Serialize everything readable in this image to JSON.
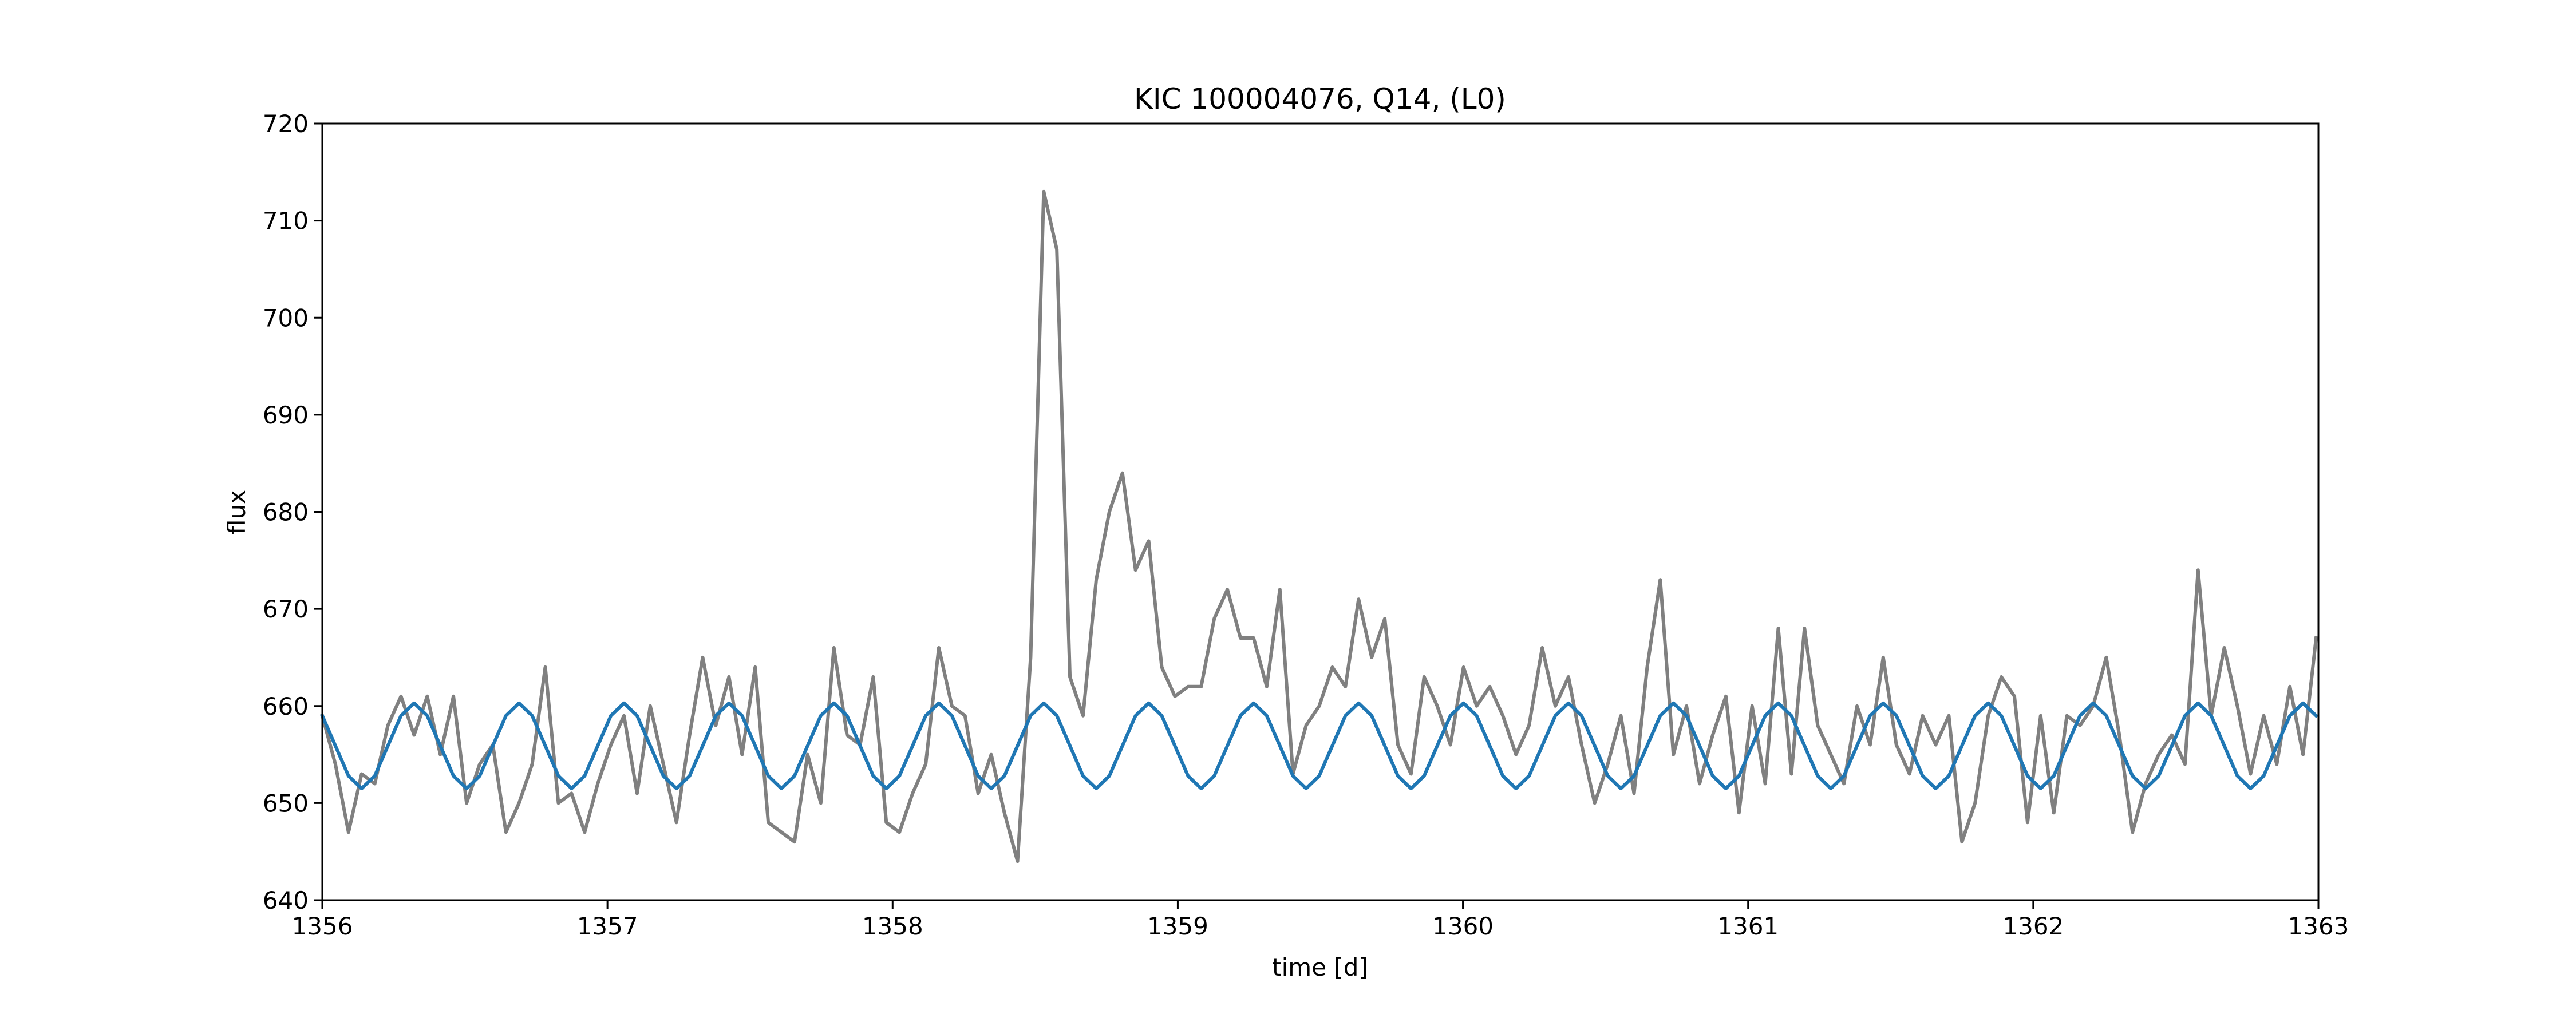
{
  "chart_data": {
    "type": "line",
    "title": "KIC 100004076, Q14, (L0)",
    "x_label": "time [d]",
    "y_label": "flux",
    "x": [
      1356.0,
      1356.046,
      1356.092,
      1356.138,
      1356.184,
      1356.23,
      1356.276,
      1356.322,
      1356.368,
      1356.414,
      1356.46,
      1356.506,
      1356.552,
      1356.598,
      1356.644,
      1356.69,
      1356.736,
      1356.782,
      1356.828,
      1356.874,
      1356.92,
      1356.966,
      1357.012,
      1357.058,
      1357.104,
      1357.15,
      1357.196,
      1357.242,
      1357.288,
      1357.334,
      1357.38,
      1357.426,
      1357.472,
      1357.518,
      1357.564,
      1357.61,
      1357.656,
      1357.702,
      1357.748,
      1357.794,
      1357.84,
      1357.886,
      1357.932,
      1357.978,
      1358.024,
      1358.07,
      1358.116,
      1358.162,
      1358.208,
      1358.254,
      1358.3,
      1358.346,
      1358.392,
      1358.438,
      1358.484,
      1358.53,
      1358.576,
      1358.622,
      1358.668,
      1358.714,
      1358.76,
      1358.806,
      1358.852,
      1358.898,
      1358.944,
      1358.99,
      1359.036,
      1359.082,
      1359.128,
      1359.174,
      1359.22,
      1359.266,
      1359.312,
      1359.358,
      1359.404,
      1359.45,
      1359.496,
      1359.542,
      1359.588,
      1359.634,
      1359.68,
      1359.726,
      1359.772,
      1359.818,
      1359.864,
      1359.91,
      1359.956,
      1360.002,
      1360.048,
      1360.094,
      1360.14,
      1360.186,
      1360.232,
      1360.278,
      1360.324,
      1360.37,
      1360.416,
      1360.462,
      1360.508,
      1360.554,
      1360.6,
      1360.646,
      1360.692,
      1360.738,
      1360.784,
      1360.83,
      1360.876,
      1360.922,
      1360.968,
      1361.014,
      1361.06,
      1361.106,
      1361.152,
      1361.198,
      1361.244,
      1361.29,
      1361.336,
      1361.382,
      1361.428,
      1361.474,
      1361.52,
      1361.566,
      1361.612,
      1361.658,
      1361.704,
      1361.75,
      1361.796,
      1361.842,
      1361.888,
      1361.934,
      1361.98,
      1362.026,
      1362.072,
      1362.118,
      1362.164,
      1362.21,
      1362.256,
      1362.302,
      1362.348,
      1362.394,
      1362.44,
      1362.486,
      1362.532,
      1362.578,
      1362.624,
      1362.67,
      1362.716,
      1362.762,
      1362.808,
      1362.854,
      1362.9,
      1362.946,
      1362.992
    ],
    "series": [
      {
        "color": "#808080",
        "values": [
          659,
          654,
          647,
          653,
          652,
          658,
          661,
          657,
          661,
          655,
          661,
          650,
          654,
          656,
          647,
          650,
          654,
          664,
          650,
          651,
          647,
          652,
          656,
          659,
          651,
          660,
          654,
          648,
          657,
          665,
          658,
          663,
          655,
          664,
          648,
          647,
          646,
          655,
          650,
          666,
          657,
          656,
          663,
          648,
          647,
          651,
          654,
          666,
          660,
          659,
          651,
          655,
          649,
          644,
          665,
          713,
          707,
          663,
          659,
          673,
          680,
          684,
          674,
          677,
          664,
          661,
          662,
          662,
          669,
          672,
          667,
          667,
          662,
          672,
          653,
          658,
          660,
          664,
          662,
          671,
          665,
          669,
          656,
          653,
          663,
          660,
          656,
          664,
          660,
          662,
          659,
          655,
          658,
          666,
          660,
          663,
          656,
          650,
          654,
          659,
          651,
          664,
          673,
          655,
          660,
          652,
          657,
          661,
          649,
          660,
          652,
          668,
          653,
          668,
          658,
          655,
          652,
          660,
          656,
          665,
          656,
          653,
          659,
          656,
          659,
          646,
          650,
          659,
          663,
          661,
          648,
          659,
          649,
          659,
          658,
          660,
          665,
          657,
          647,
          652,
          655,
          657,
          654,
          674,
          659,
          666,
          660,
          653,
          659,
          654,
          662,
          655,
          667
        ]
      },
      {
        "color": "#1f77b4",
        "values": [
          659.0,
          655.9,
          652.8,
          651.5,
          652.8,
          655.9,
          659.0,
          660.3,
          659.0,
          655.9,
          652.8,
          651.5,
          652.8,
          655.9,
          659.0,
          660.3,
          659.0,
          655.9,
          652.8,
          651.5,
          652.8,
          655.9,
          659.0,
          660.3,
          659.0,
          655.9,
          652.8,
          651.5,
          652.8,
          655.9,
          659.0,
          660.3,
          659.0,
          655.9,
          652.8,
          651.5,
          652.8,
          655.9,
          659.0,
          660.3,
          659.0,
          655.9,
          652.8,
          651.5,
          652.8,
          655.9,
          659.0,
          660.3,
          659.0,
          655.9,
          652.8,
          651.5,
          652.8,
          655.9,
          659.0,
          660.3,
          659.0,
          655.9,
          652.8,
          651.5,
          652.8,
          655.9,
          659.0,
          660.3,
          659.0,
          655.9,
          652.8,
          651.5,
          652.8,
          655.9,
          659.0,
          660.3,
          659.0,
          655.9,
          652.8,
          651.5,
          652.8,
          655.9,
          659.0,
          660.3,
          659.0,
          655.9,
          652.8,
          651.5,
          652.8,
          655.9,
          659.0,
          660.3,
          659.0,
          655.9,
          652.8,
          651.5,
          652.8,
          655.9,
          659.0,
          660.3,
          659.0,
          655.9,
          652.8,
          651.5,
          652.8,
          655.9,
          659.0,
          660.3,
          659.0,
          655.9,
          652.8,
          651.5,
          652.8,
          655.9,
          659.0,
          660.3,
          659.0,
          655.9,
          652.8,
          651.5,
          652.8,
          655.9,
          659.0,
          660.3,
          659.0,
          655.9,
          652.8,
          651.5,
          652.8,
          655.9,
          659.0,
          660.3,
          659.0,
          655.9,
          652.8,
          651.5,
          652.8,
          655.9,
          659.0,
          660.3,
          659.0,
          655.9,
          652.8,
          651.5,
          652.8,
          655.9,
          659.0,
          660.3,
          659.0,
          655.9,
          652.8,
          651.5,
          652.8,
          655.9,
          659.0,
          660.3,
          659.0
        ]
      }
    ],
    "xlim": [
      1356,
      1363
    ],
    "xticks": [
      1356,
      1357,
      1358,
      1359,
      1360,
      1361,
      1362,
      1363
    ],
    "ylim": [
      640,
      720
    ],
    "yticks": [
      640,
      650,
      660,
      670,
      680,
      690,
      700,
      710,
      720
    ],
    "grid": false
  }
}
